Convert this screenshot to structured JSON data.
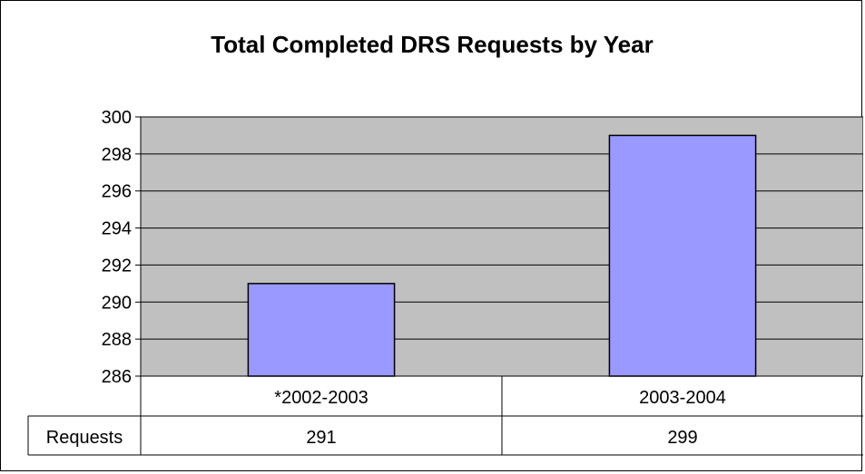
{
  "chart_data": {
    "type": "bar",
    "title": "Total Completed DRS Requests by Year",
    "categories": [
      "*2002-2003",
      "2003-2004"
    ],
    "series": [
      {
        "name": "Requests",
        "values": [
          291,
          299
        ]
      }
    ],
    "ylim": [
      286,
      300
    ],
    "y_ticks": [
      300,
      298,
      296,
      294,
      292,
      290,
      288,
      286
    ],
    "grid": true,
    "legend": "data-table",
    "colors": {
      "bar_fill": "#9999ff",
      "plot_background": "#c0c0c0",
      "gridline": "#000000"
    }
  }
}
